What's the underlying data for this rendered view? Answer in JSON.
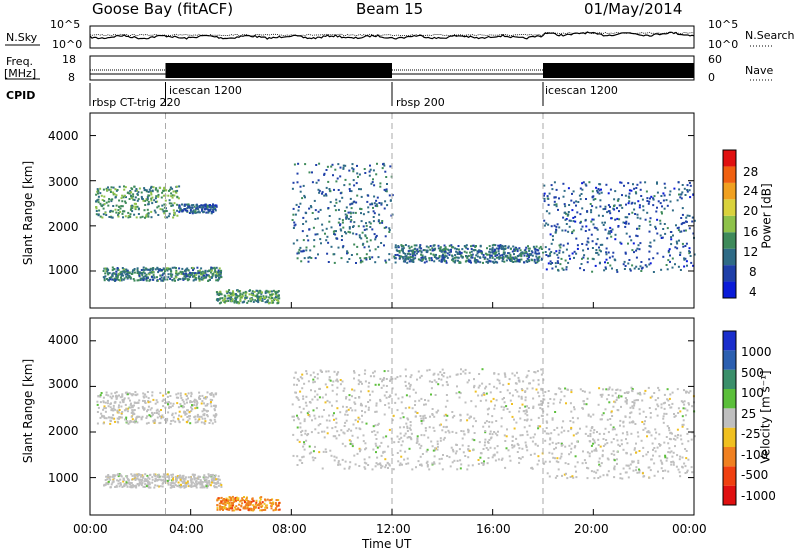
{
  "header": {
    "station": "Goose Bay (fitACF)",
    "beam": "Beam 15",
    "date": "01/May/2014"
  },
  "panels": {
    "noise": {
      "left_label": "N.Sky",
      "right_label": "N.Search",
      "left_ticks": [
        "10^5",
        "10^0"
      ],
      "right_ticks": [
        "10^5",
        "10^0"
      ]
    },
    "freq": {
      "left_label_1": "Freq.",
      "left_label_2": "[MHz]",
      "right_label": "Nave",
      "left_ticks": [
        "18",
        "8"
      ],
      "right_ticks": [
        "60",
        "0"
      ]
    },
    "cpid": {
      "label": "CPID"
    }
  },
  "cpid_modes": [
    {
      "name": "rbsp CT-trig 220",
      "start": 0
    },
    {
      "name": "icescan 1200",
      "start": 3.0
    },
    {
      "name": "rbsp 200",
      "start": 12.0
    },
    {
      "name": "icescan 1200",
      "start": 18.0
    }
  ],
  "axes": {
    "xlabel": "Time UT",
    "xticks": [
      "00:00",
      "04:00",
      "08:00",
      "12:00",
      "16:00",
      "20:00",
      "00:00"
    ],
    "ylabel": "Slant Range [km]",
    "yticks": [
      "1000",
      "2000",
      "3000",
      "4000"
    ]
  },
  "colorbars": {
    "power": {
      "label": "Power [dB]",
      "ticks": [
        "4",
        "8",
        "12",
        "16",
        "20",
        "24",
        "28"
      ],
      "colors": [
        "#0a1bd8",
        "#1f3fa8",
        "#2f6b86",
        "#3e8a5a",
        "#8ec24a",
        "#d9d23c",
        "#f0a020",
        "#f06010",
        "#e01010"
      ]
    },
    "velocity": {
      "label": "Velocity [m s⁻¹]",
      "ticks": [
        "1000",
        "500",
        "100",
        "25",
        "-25",
        "-100",
        "-500",
        "-1000"
      ],
      "colors": [
        "#1a2ecc",
        "#2b5fb0",
        "#3a8f6a",
        "#5bbf3a",
        "#bfbfbf",
        "#f0c020",
        "#f08020",
        "#f04010",
        "#e01010"
      ]
    }
  },
  "chart_data": [
    {
      "type": "heatmap",
      "title": "Power",
      "xlabel": "Time UT",
      "ylabel": "Slant Range [km]",
      "xlim": [
        0,
        24
      ],
      "ylim": [
        180,
        4500
      ],
      "colorbar_label": "Power [dB]",
      "colorbar_ticks": [
        4,
        8,
        12,
        16,
        20,
        24,
        28
      ],
      "features": [
        {
          "time_range": [
            0.2,
            3.5
          ],
          "range_km": [
            2200,
            2900
          ],
          "power_db": 14
        },
        {
          "time_range": [
            3.5,
            5.0
          ],
          "range_km": [
            2300,
            2500
          ],
          "power_db": 8
        },
        {
          "time_range": [
            0.5,
            5.2
          ],
          "range_km": [
            800,
            1100
          ],
          "power_db": 12
        },
        {
          "time_range": [
            5.0,
            7.5
          ],
          "range_km": [
            300,
            600
          ],
          "power_db": 14
        },
        {
          "time_range": [
            8.0,
            12.0
          ],
          "range_km": [
            1200,
            3400
          ],
          "power_db": 10
        },
        {
          "time_range": [
            12.0,
            18.0
          ],
          "range_km": [
            1200,
            1600
          ],
          "power_db": 10
        },
        {
          "time_range": [
            18.0,
            24.0
          ],
          "range_km": [
            1000,
            3000
          ],
          "power_db": 8
        }
      ]
    },
    {
      "type": "heatmap",
      "title": "Velocity",
      "xlabel": "Time UT",
      "ylabel": "Slant Range [km]",
      "xlim": [
        0,
        24
      ],
      "ylim": [
        180,
        4500
      ],
      "colorbar_label": "Velocity [m s⁻¹]",
      "colorbar_ticks": [
        1000,
        500,
        100,
        25,
        -25,
        -100,
        -500,
        -1000
      ],
      "features": [
        {
          "time_range": [
            0.2,
            5.0
          ],
          "range_km": [
            2200,
            2900
          ],
          "velocity_ms": 0
        },
        {
          "time_range": [
            0.5,
            5.2
          ],
          "range_km": [
            800,
            1100
          ],
          "velocity_ms": 0
        },
        {
          "time_range": [
            5.0,
            7.5
          ],
          "range_km": [
            300,
            600
          ],
          "velocity_ms": -400
        },
        {
          "time_range": [
            8.0,
            18.0
          ],
          "range_km": [
            1200,
            3400
          ],
          "velocity_ms": 0
        },
        {
          "time_range": [
            18.0,
            24.0
          ],
          "range_km": [
            1000,
            3000
          ],
          "velocity_ms": 0
        }
      ]
    }
  ]
}
